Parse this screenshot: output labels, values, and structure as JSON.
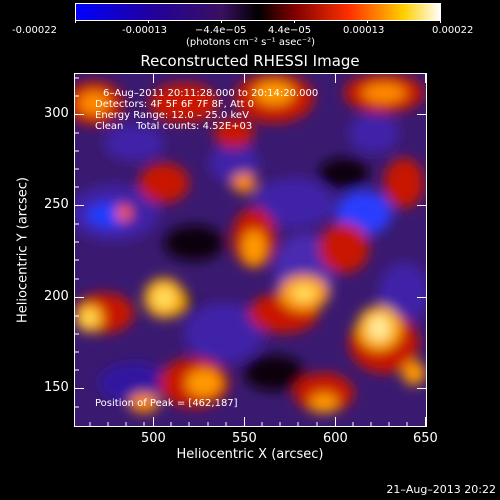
{
  "colorbar": {
    "tick_labels": [
      "-0.00022",
      "-0.00013",
      "−4.4e−05",
      "4.4e−05",
      "0.00013",
      "0.00022"
    ],
    "unit_label": "(photons cm⁻² s⁻¹ asec⁻²)",
    "stops": [
      "#0000ff",
      "#400080",
      "#2a0050",
      "#000000",
      "#8b0000",
      "#ff4500",
      "#ffd700",
      "#ffffff"
    ]
  },
  "title": "Reconstructed RHESSI Image",
  "info": {
    "line1": "6–Aug–2011 20:11:28.000 to 20:14:20.000",
    "line2": "Detectors: 4F 5F 6F 7F 8F, Att 0",
    "line3": "Energy Range: 12.0 – 25.0 keV",
    "line4": "Clean    Total counts: 4.52E+03"
  },
  "peak_text": "Position of Peak = [462,187]",
  "x_axis": {
    "label": "Heliocentric X (arcsec)",
    "ticks": [
      "500",
      "550",
      "600",
      "650"
    ]
  },
  "y_axis": {
    "label": "Heliocentric Y (arcsec)",
    "ticks": [
      "150",
      "200",
      "250",
      "300"
    ]
  },
  "footer_date": "21–Aug–2013 20:22"
}
